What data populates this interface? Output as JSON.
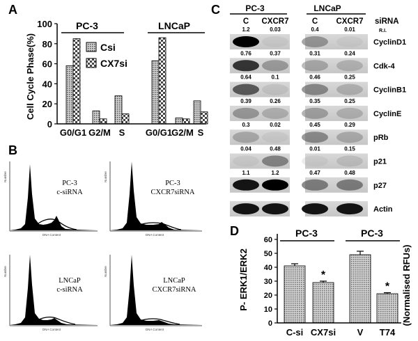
{
  "panels": {
    "a": "A",
    "b": "B",
    "c": "C",
    "d": "D"
  },
  "chart_data": [
    {
      "type": "bar",
      "ylabel": "Cell Cycle Phase(%)",
      "ylim": [
        0,
        100
      ],
      "yticks": [
        "0",
        "20",
        "40",
        "60",
        "80",
        "100"
      ],
      "categories": [
        "G0/G1",
        "G2/M",
        "S",
        "G0/G1",
        "G2/M",
        "S"
      ],
      "groups": [
        "PC-3",
        "LNCaP"
      ],
      "series": [
        {
          "name": "Csi",
          "values": [
            58,
            13,
            28,
            63,
            6,
            23
          ]
        },
        {
          "name": "CX7si",
          "values": [
            85,
            5,
            10,
            86,
            5,
            12
          ]
        }
      ],
      "legend": "top-center"
    },
    {
      "type": "bar",
      "ylabel": "P- ERK1/ERK2",
      "ylabel2": "(Normalised RFUs)",
      "ylim": [
        0,
        60
      ],
      "yticks": [
        "0",
        "10",
        "20",
        "30",
        "40",
        "50",
        "60"
      ],
      "categories": [
        "C-si",
        "CX7si",
        "V",
        "T74"
      ],
      "groups": [
        "PC-3",
        "PC-3"
      ],
      "values": [
        41,
        29,
        49,
        21
      ],
      "errors": [
        1.5,
        1,
        2.5,
        0.7
      ],
      "significance": [
        "",
        "*",
        "",
        "*"
      ]
    }
  ],
  "panel_b": {
    "plots": [
      {
        "line1": "PC-3",
        "line2": "c-siRNA"
      },
      {
        "line1": "PC-3",
        "line2": "CXCR7siRNA"
      },
      {
        "line1": "LNCaP",
        "line2": "c-siRNA"
      },
      {
        "line1": "LNCaP",
        "line2": "CXCR7siRNA"
      }
    ],
    "axis_x": "DNA Content",
    "axis_y": "Number"
  },
  "panel_c": {
    "header_left": "PC-3",
    "header_right": "LNCaP",
    "lanes": [
      "C",
      "CXCR7",
      "C",
      "CXCR7"
    ],
    "sirna_label": "siRNA",
    "ri_label": "R.I.",
    "rows": [
      {
        "protein": "CyclinD1",
        "ri": [
          "1.2",
          "0.03",
          "0.4",
          "0.01"
        ]
      },
      {
        "protein": "Cdk-4",
        "ri": [
          "0.76",
          "0.37",
          "0.31",
          "0.24"
        ]
      },
      {
        "protein": "CyclinB1",
        "ri": [
          "0.64",
          "0.1",
          "0.46",
          "0.25"
        ]
      },
      {
        "protein": "CyclinE",
        "ri": [
          "0.39",
          "0.26",
          "0.35",
          "0.25"
        ]
      },
      {
        "protein": "pRb",
        "ri": [
          "0.3",
          "0.02",
          "0.45",
          "0.29"
        ]
      },
      {
        "protein": "p21",
        "ri": [
          "0.04",
          "0.48",
          "0.01",
          "0.15"
        ]
      },
      {
        "protein": "p27",
        "ri": [
          "1.1",
          "1.2",
          "0.47",
          "0.48"
        ]
      },
      {
        "protein": "Actin",
        "ri": []
      }
    ]
  }
}
